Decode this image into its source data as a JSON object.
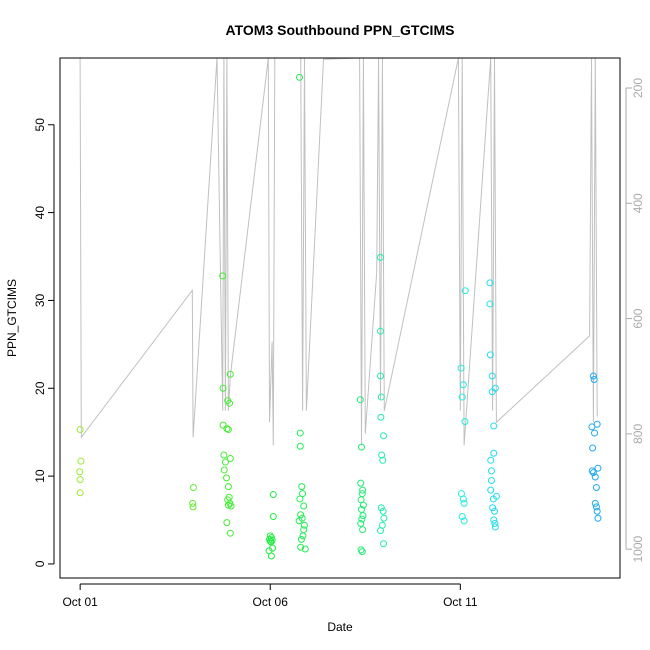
{
  "chart_data": {
    "type": "scatter",
    "title": "ATOM3 Southbound PPN_GTCIMS",
    "x_label": "Date",
    "y_label": "PPN_GTCIMS",
    "xlim": [
      0.47,
      15.2
    ],
    "xticks": [
      {
        "value": 1,
        "label": "Oct 01"
      },
      {
        "value": 6,
        "label": "Oct 06"
      },
      {
        "value": 11,
        "label": "Oct 11"
      }
    ],
    "ylim": [
      -1.6,
      57.6
    ],
    "yticks": [
      0,
      10,
      20,
      30,
      40,
      50
    ],
    "y2lim": [
      1050,
      148
    ],
    "y2ticks": [
      200,
      400,
      600,
      800,
      1000
    ],
    "series": [
      {
        "type": "scatter",
        "color": "#99ee33",
        "x": [
          1.0,
          1.02,
          0.99,
          1.0,
          1.0
        ],
        "values": [
          15.3,
          11.7,
          10.5,
          9.6,
          8.1
        ]
      },
      {
        "type": "scatter",
        "color": "#66ee33",
        "x": [
          3.98,
          3.96,
          3.97
        ],
        "values": [
          8.7,
          6.9,
          6.5
        ]
      },
      {
        "type": "scatter",
        "color": "#44ee33",
        "x": [
          4.75,
          4.76,
          4.95,
          4.88,
          4.93,
          4.76,
          4.86,
          4.9,
          4.78,
          4.95,
          4.82,
          4.79,
          4.85,
          4.9,
          4.92,
          4.88,
          4.94,
          4.9,
          4.97,
          4.86,
          4.95
        ],
        "values": [
          32.8,
          20.0,
          21.6,
          18.6,
          18.3,
          15.8,
          15.4,
          15.3,
          12.4,
          12.0,
          11.6,
          10.7,
          9.8,
          8.8,
          7.6,
          7.3,
          6.9,
          6.7,
          6.6,
          4.7,
          3.5
        ]
      },
      {
        "type": "scatter",
        "color": "#22ee44",
        "x": [
          6.08,
          6.08,
          6.0,
          6.03,
          5.98,
          6.05,
          6.0,
          6.02,
          6.06,
          5.97,
          6.03
        ],
        "values": [
          7.9,
          5.4,
          3.2,
          3.0,
          2.8,
          2.7,
          2.6,
          2.5,
          1.8,
          1.5,
          0.9
        ]
      },
      {
        "type": "scatter",
        "color": "#22ee55",
        "x": [
          6.77,
          6.79,
          6.79,
          6.83,
          6.85,
          6.78,
          6.88,
          6.8,
          6.84,
          6.76,
          6.9,
          6.88,
          6.86,
          6.82,
          6.8,
          6.92
        ],
        "values": [
          55.4,
          14.9,
          13.4,
          8.8,
          8.0,
          7.4,
          6.6,
          5.6,
          5.2,
          4.9,
          4.4,
          3.9,
          3.2,
          2.8,
          1.9,
          1.7
        ]
      },
      {
        "type": "scatter",
        "color": "#22ee77",
        "x": [
          8.37,
          8.4,
          8.38,
          8.43,
          8.42,
          8.39,
          8.45,
          8.4,
          8.44,
          8.41,
          8.38,
          8.43,
          8.39,
          8.42
        ],
        "values": [
          18.7,
          13.3,
          9.2,
          8.4,
          8.0,
          7.3,
          6.7,
          6.2,
          5.5,
          5.1,
          4.6,
          3.9,
          1.6,
          1.4
        ]
      },
      {
        "type": "scatter",
        "color": "#22eeaa",
        "x": [
          8.9,
          8.9,
          8.9,
          8.92,
          8.91,
          8.98,
          8.93,
          8.96,
          8.92,
          8.97,
          8.99,
          8.95,
          8.9,
          8.98
        ],
        "values": [
          34.9,
          26.5,
          21.4,
          19.0,
          16.7,
          14.6,
          12.4,
          11.8,
          6.4,
          6.0,
          5.2,
          4.4,
          3.8,
          2.3
        ]
      },
      {
        "type": "scatter",
        "color": "#22eedd",
        "x": [
          11.13,
          11.02,
          11.08,
          11.05,
          11.12,
          11.03,
          11.08,
          11.1,
          11.05,
          11.1
        ],
        "values": [
          31.1,
          22.3,
          20.4,
          19.0,
          16.2,
          8.0,
          7.4,
          6.9,
          5.4,
          4.9
        ]
      },
      {
        "type": "scatter",
        "color": "#22ddee",
        "x": [
          11.78,
          11.78,
          11.79,
          11.84,
          11.92,
          11.84,
          11.88,
          11.88,
          11.8,
          11.82,
          11.82,
          11.8,
          11.95,
          11.87,
          11.85,
          11.9,
          11.88,
          11.91,
          11.92
        ],
        "values": [
          32.0,
          29.6,
          23.8,
          21.4,
          20.0,
          19.6,
          15.7,
          12.6,
          11.8,
          10.6,
          9.5,
          8.4,
          7.7,
          7.4,
          6.4,
          6.0,
          5.0,
          4.6,
          4.2
        ]
      },
      {
        "type": "scatter",
        "color": "#22aaee",
        "x": [
          14.5,
          14.52,
          14.6,
          14.46,
          14.53,
          14.48,
          14.62,
          14.47,
          14.5,
          14.55,
          14.58,
          14.55,
          14.58,
          14.6,
          14.62
        ],
        "values": [
          21.4,
          21.0,
          15.9,
          15.6,
          14.9,
          13.2,
          10.9,
          10.6,
          10.4,
          9.9,
          8.7,
          6.9,
          6.5,
          6.0,
          5.2
        ]
      },
      {
        "type": "line",
        "axis": "y2",
        "color": "#c0c0c0",
        "x": [
          1.0,
          1.03,
          3.95,
          3.97,
          4.6,
          4.75,
          4.78,
          4.82,
          4.86,
          4.9,
          4.95,
          5.95,
          5.98,
          6.05,
          6.08,
          6.12,
          6.8,
          6.85,
          6.9,
          6.95,
          7.4,
          8.35,
          8.4,
          8.45,
          8.5,
          8.8,
          8.85,
          8.9,
          8.95,
          9.0,
          10.95,
          11.0,
          11.05,
          11.1,
          11.8,
          11.85,
          11.9,
          11.95,
          14.4,
          14.45,
          14.5,
          14.55,
          14.6
        ],
        "values": [
          148,
          806,
          551,
          806,
          148,
          760,
          148,
          760,
          148,
          760,
          700,
          148,
          780,
          640,
          820,
          148,
          148,
          760,
          148,
          760,
          150,
          148,
          820,
          148,
          800,
          520,
          148,
          740,
          148,
          760,
          148,
          760,
          148,
          820,
          148,
          760,
          148,
          780,
          630,
          148,
          780,
          148,
          770
        ]
      }
    ]
  }
}
